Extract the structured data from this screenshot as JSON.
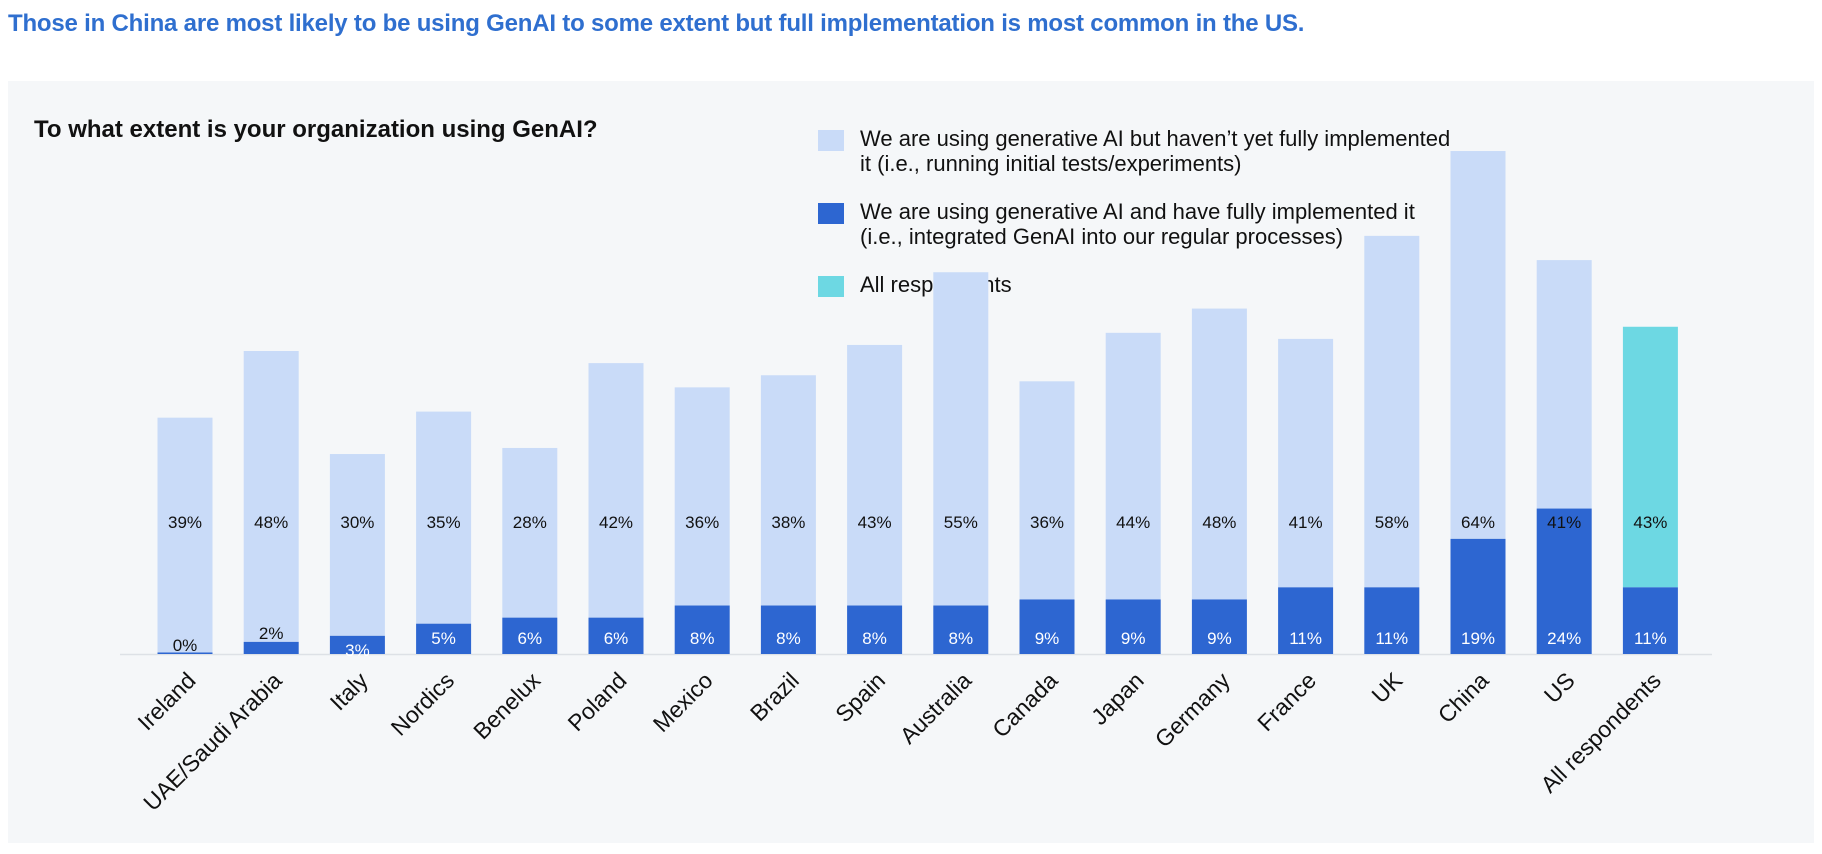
{
  "headline": "Those in China are most likely to be using GenAI to some extent but full implementation is most common in the US.",
  "colors": {
    "headline": "#2f6fcf",
    "partial": "#c9dbf8",
    "full": "#2d66d1",
    "all_respondents": "#6dd8e3",
    "panel": "#f5f7f9"
  },
  "chart_data": {
    "type": "bar",
    "stacked": true,
    "title": "To what extent is your organization using GenAI?",
    "categories": [
      "Ireland",
      "UAE/Saudi Arabia",
      "Italy",
      "Nordics",
      "Benelux",
      "Poland",
      "Mexico",
      "Brazil",
      "Spain",
      "Australia",
      "Canada",
      "Japan",
      "Germany",
      "France",
      "UK",
      "China",
      "US",
      "All respondents"
    ],
    "series": [
      {
        "name": "We are using generative AI and have fully implemented it (i.e., integrated GenAI into our regular processes)",
        "values": [
          0,
          2,
          3,
          5,
          6,
          6,
          8,
          8,
          8,
          8,
          9,
          9,
          9,
          11,
          11,
          19,
          24,
          11
        ],
        "labels": [
          "0%",
          "2%",
          "3%",
          "5%",
          "6%",
          "6%",
          "8%",
          "8%",
          "8%",
          "8%",
          "9%",
          "9%",
          "9%",
          "11%",
          "11%",
          "19%",
          "24%",
          "11%"
        ]
      },
      {
        "name": "We are using generative AI but haven’t yet fully implemented it (i.e., running initial tests/experiments)",
        "values": [
          39,
          48,
          30,
          35,
          28,
          42,
          36,
          38,
          43,
          55,
          36,
          44,
          48,
          41,
          58,
          64,
          41,
          43
        ],
        "labels": [
          "39%",
          "48%",
          "30%",
          "35%",
          "28%",
          "42%",
          "36%",
          "38%",
          "43%",
          "55%",
          "36%",
          "44%",
          "48%",
          "41%",
          "58%",
          "64%",
          "41%",
          "43%"
        ]
      }
    ],
    "highlight_category": "All respondents",
    "ylim": [
      0,
      90
    ],
    "legend": {
      "position": "top-center",
      "items": [
        {
          "label": "We are using generative AI but haven’t yet fully implemented it (i.e., running initial tests/experiments)",
          "color": "#c9dbf8"
        },
        {
          "label": "We are using generative AI and have fully implemented it (i.e., integrated GenAI into our regular processes)",
          "color": "#2d66d1"
        },
        {
          "label": "All respondents",
          "color": "#6dd8e3"
        }
      ]
    }
  }
}
